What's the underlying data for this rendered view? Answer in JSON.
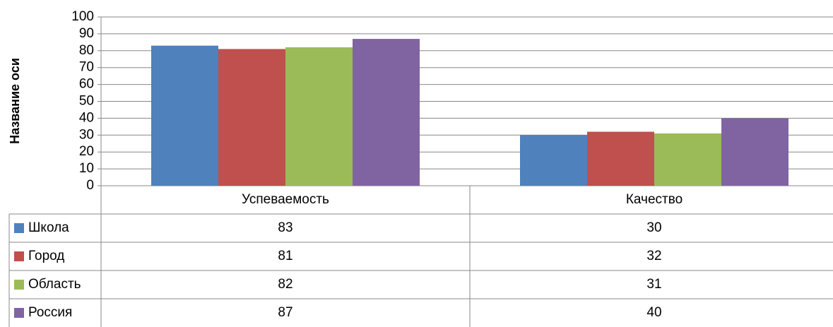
{
  "chart_data": {
    "type": "bar",
    "y_label": "Название оси",
    "categories": [
      "Успеваемость",
      "Качество"
    ],
    "series": [
      {
        "name": "Школа",
        "color": "#4f81bd",
        "values": [
          83,
          30
        ]
      },
      {
        "name": "Город",
        "color": "#c0504d",
        "values": [
          81,
          32
        ]
      },
      {
        "name": "Область",
        "color": "#9bbb59",
        "values": [
          82,
          31
        ]
      },
      {
        "name": "Россия",
        "color": "#8064a2",
        "values": [
          87,
          40
        ]
      }
    ],
    "ylim": [
      0,
      100
    ],
    "yticks": [
      0,
      10,
      20,
      30,
      40,
      50,
      60,
      70,
      80,
      90,
      100
    ],
    "grid": true
  }
}
